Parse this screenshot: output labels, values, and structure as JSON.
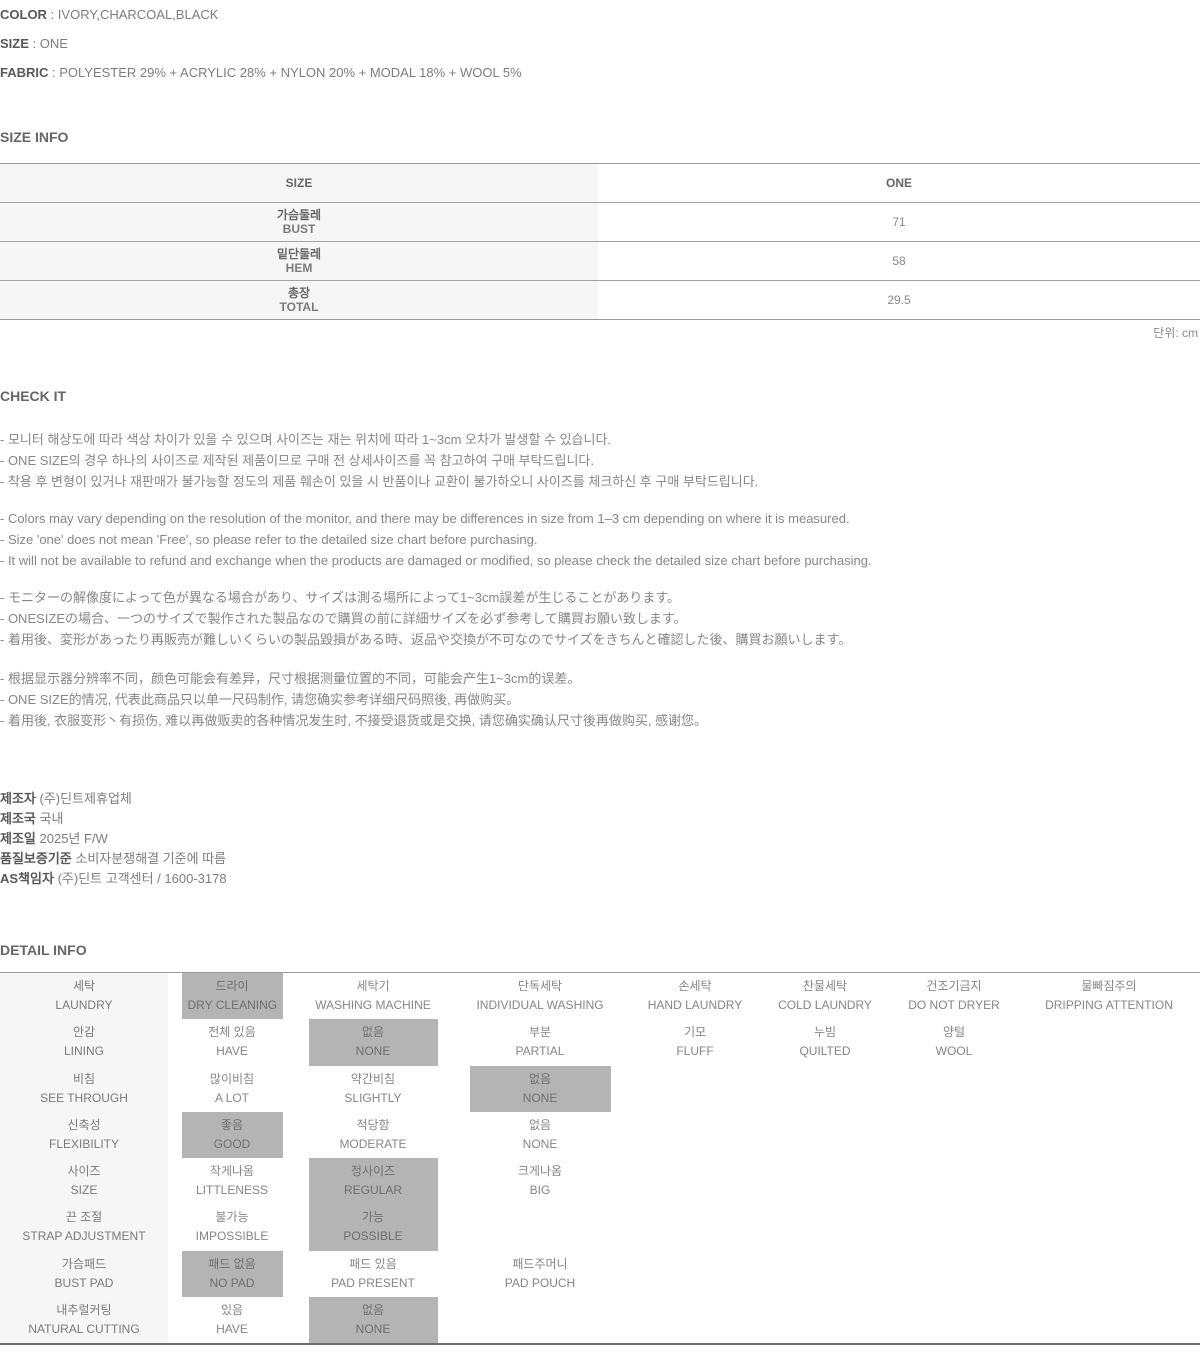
{
  "specs": [
    {
      "label": "COLOR",
      "value": "IVORY,CHARCOAL,BLACK"
    },
    {
      "label": "SIZE",
      "value": "ONE"
    },
    {
      "label": "FABRIC",
      "value": "POLYESTER 29% + ACRYLIC 28% + NYLON 20% + MODAL 18% + WOOL 5%"
    }
  ],
  "size_info": {
    "heading": "SIZE INFO",
    "unit_note": "단위: cm",
    "header": {
      "label": "SIZE",
      "value": "ONE"
    },
    "rows": [
      {
        "ko": "가슴둘레",
        "en": "BUST",
        "value": "71"
      },
      {
        "ko": "밑단둘레",
        "en": "HEM",
        "value": "58"
      },
      {
        "ko": "총장",
        "en": "TOTAL",
        "value": "29.5"
      }
    ]
  },
  "check_it": {
    "heading": "CHECK IT",
    "ko": [
      "- 모니터 해상도에 따라 색상 차이가 있을 수 있으며 사이즈는 재는 위치에 따라 1~3cm 오차가 발생할 수 있습니다.",
      "- ONE SIZE의 경우 하나의 사이즈로 제작된 제품이므로 구매 전 상세사이즈를 꼭 참고하여 구매 부탁드립니다.",
      "- 착용 후 변형이 있거나 재판매가 불가능할 정도의 제품 훼손이 있을 시 반품이나 교환이 불가하오니 사이즈를 체크하신 후 구매 부탁드립니다."
    ],
    "en": [
      "- Colors may vary depending on the resolution of the monitor, and there may be differences in size from 1–3 cm depending on where it is measured.",
      "- Size 'one' does not mean 'Free', so please refer to the detailed size chart before purchasing.",
      "- It will not be available to refund and exchange when the products are damaged or modified, so please check the detailed size chart before purchasing."
    ],
    "ja": [
      "- モニターの解像度によって色が異なる場合があり、サイズは測る場所によって1~3cm誤差が生じることがあります。",
      "- ONESIZEの場合、一つのサイズで製作された製品なので購買の前に詳細サイズを必ず参考して購買お願い致します。",
      "- 着用後、変形があったり再販売が難しいくらいの製品毀損がある時、返品や交換が不可なのでサイズをきちんと確認した後、購買お願いします。"
    ],
    "zh": [
      "- 根据显示器分辨率不同，颜色可能会有差异，尺寸根据测量位置的不同，可能会产生1~3cm的误差。",
      "- ONE SIZE的情况, 代表此商品只以单一尺码制作, 请您确实参考详细尺码照後, 再做购买。",
      "- 着用後, 衣服变形丶有损伤, 难以再做贩卖的各种情况发生时, 不接受退货或是交换, 请您确实确认尺寸後再做购买, 感谢您。"
    ]
  },
  "manufacturer": [
    {
      "label": "제조자",
      "value": "(주)딘트제휴업체"
    },
    {
      "label": "제조국",
      "value": "국내"
    },
    {
      "label": "제조일",
      "value": "2025년 F/W"
    },
    {
      "label": "품질보증기준",
      "value": "소비자분쟁해결 기준에 따름"
    },
    {
      "label": "AS책임자",
      "value": "(주)딘트 고객센터 / 1600-3178"
    }
  ],
  "detail_info": {
    "heading": "DETAIL INFO",
    "rows": [
      {
        "label_ko": "세탁",
        "label_en": "LAUNDRY",
        "options": [
          {
            "ko": "드라이",
            "en": "DRY CLEANING",
            "selected": true
          },
          {
            "ko": "세탁기",
            "en": "WASHING MACHINE",
            "selected": false
          },
          {
            "ko": "단독세탁",
            "en": "INDIVIDUAL WASHING",
            "selected": false
          },
          {
            "ko": "손세탁",
            "en": "HAND LAUNDRY",
            "selected": false
          },
          {
            "ko": "찬물세탁",
            "en": "COLD LAUNDRY",
            "selected": false
          },
          {
            "ko": "건조기금지",
            "en": "DO NOT DRYER",
            "selected": false
          },
          {
            "ko": "물빠짐주의",
            "en": "DRIPPING ATTENTION",
            "selected": false
          }
        ]
      },
      {
        "label_ko": "안감",
        "label_en": "LINING",
        "options": [
          {
            "ko": "전체 있음",
            "en": "HAVE",
            "selected": false
          },
          {
            "ko": "없음",
            "en": "NONE",
            "selected": true
          },
          {
            "ko": "부분",
            "en": "PARTIAL",
            "selected": false
          },
          {
            "ko": "기모",
            "en": "FLUFF",
            "selected": false
          },
          {
            "ko": "누빔",
            "en": "QUILTED",
            "selected": false
          },
          {
            "ko": "양털",
            "en": "WOOL",
            "selected": false
          }
        ]
      },
      {
        "label_ko": "비침",
        "label_en": "SEE THROUGH",
        "options": [
          {
            "ko": "많이비침",
            "en": "A LOT",
            "selected": false
          },
          {
            "ko": "약간비침",
            "en": "SLIGHTLY",
            "selected": false
          },
          {
            "ko": "없음",
            "en": "NONE",
            "selected": true
          }
        ]
      },
      {
        "label_ko": "신축성",
        "label_en": "FLEXIBILITY",
        "options": [
          {
            "ko": "좋음",
            "en": "GOOD",
            "selected": true
          },
          {
            "ko": "적당함",
            "en": "MODERATE",
            "selected": false
          },
          {
            "ko": "없음",
            "en": "NONE",
            "selected": false
          }
        ]
      },
      {
        "label_ko": "사이즈",
        "label_en": "SIZE",
        "options": [
          {
            "ko": "작게나옴",
            "en": "LITTLENESS",
            "selected": false
          },
          {
            "ko": "정사이즈",
            "en": "REGULAR",
            "selected": true
          },
          {
            "ko": "크게나옴",
            "en": "BIG",
            "selected": false
          }
        ]
      },
      {
        "label_ko": "끈 조절",
        "label_en": "STRAP ADJUSTMENT",
        "options": [
          {
            "ko": "불가능",
            "en": "IMPOSSIBLE",
            "selected": false
          },
          {
            "ko": "가능",
            "en": "POSSIBLE",
            "selected": true
          }
        ]
      },
      {
        "label_ko": "가슴패드",
        "label_en": "BUST PAD",
        "options": [
          {
            "ko": "패드 없음",
            "en": "NO PAD",
            "selected": true
          },
          {
            "ko": "패드 있음",
            "en": "PAD PRESENT",
            "selected": false
          },
          {
            "ko": "패드주머니",
            "en": "PAD POUCH",
            "selected": false
          }
        ]
      },
      {
        "label_ko": "내추럴커팅",
        "label_en": "NATURAL CUTTING",
        "options": [
          {
            "ko": "있음",
            "en": "HAVE",
            "selected": false
          },
          {
            "ko": "없음",
            "en": "NONE",
            "selected": true
          }
        ]
      }
    ]
  },
  "colors": {
    "highlight": "#b4b4b4",
    "label_bg": "#f6f6f6",
    "border": "#999999",
    "body_text": "#878787",
    "heading_text": "#666666"
  }
}
